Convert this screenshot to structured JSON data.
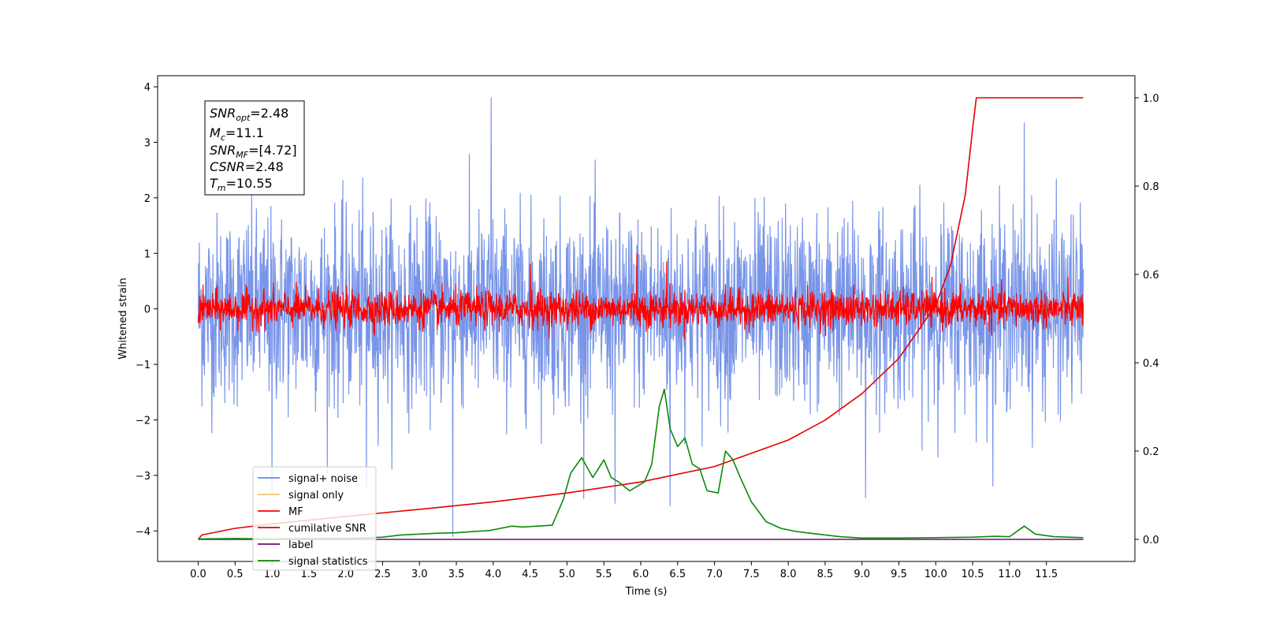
{
  "chart_data": {
    "type": "line",
    "title": "",
    "xlabel": "Time (s)",
    "ylabel": "Whitened strain",
    "xlim": [
      -0.55,
      12.7
    ],
    "ylim": [
      -4.55,
      4.2
    ],
    "ylim_right": [
      -0.05,
      1.05
    ],
    "xticks": [
      0.0,
      0.5,
      1.0,
      1.5,
      2.0,
      2.5,
      3.0,
      3.5,
      4.0,
      4.5,
      5.0,
      5.5,
      6.0,
      6.5,
      7.0,
      7.5,
      8.0,
      8.5,
      9.0,
      9.5,
      10.0,
      10.5,
      11.0,
      11.5
    ],
    "xtick_labels": [
      "0.0",
      "0.5",
      "1.0",
      "1.5",
      "2.0",
      "2.5",
      "3.0",
      "3.5",
      "4.0",
      "4.5",
      "5.0",
      "5.5",
      "6.0",
      "6.5",
      "7.0",
      "7.5",
      "8.0",
      "8.5",
      "9.0",
      "9.5",
      "10.0",
      "10.5",
      "11.0",
      "11.5"
    ],
    "yticks_left": [
      -4,
      -3,
      -2,
      -1,
      0,
      1,
      2,
      3,
      4
    ],
    "ytick_labels_left": [
      "−4",
      "−3",
      "−2",
      "−1",
      "0",
      "1",
      "2",
      "3",
      "4"
    ],
    "yticks_right": [
      0.0,
      0.2,
      0.4,
      0.6,
      0.8,
      1.0
    ],
    "ytick_labels_right": [
      "0.0",
      "0.2",
      "0.4",
      "0.6",
      "0.8",
      "1.0"
    ],
    "grid": false,
    "legend_position": "lower-left",
    "series": [
      {
        "name": "signal+ noise",
        "color": "#6a89e6",
        "axis": "left",
        "x_range": [
          0.0,
          12.0
        ],
        "noise_std": 0.85,
        "spikes": [
          [
            3.45,
            -4.1
          ],
          [
            3.97,
            3.8
          ],
          [
            2.28,
            -3.2
          ],
          [
            5.65,
            -3.5
          ],
          [
            6.4,
            -3.55
          ],
          [
            11.2,
            3.35
          ],
          [
            9.05,
            -3.4
          ],
          [
            1.0,
            -3.3
          ]
        ]
      },
      {
        "name": "signal only",
        "color": "#f5c76a",
        "axis": "left",
        "x_range": [
          0.0,
          12.0
        ],
        "values": [
          0.0
        ]
      },
      {
        "name": "MF",
        "color": "#ff0000",
        "axis": "left",
        "x_range": [
          0.0,
          12.0
        ],
        "noise_std": 0.16
      },
      {
        "name": "cumilative SNR",
        "color": "#e60000",
        "axis": "right",
        "x": [
          0.0,
          0.05,
          0.5,
          1.0,
          2.0,
          3.0,
          4.0,
          5.0,
          6.0,
          7.0,
          8.0,
          8.5,
          9.0,
          9.5,
          10.0,
          10.2,
          10.4,
          10.5,
          10.55,
          12.0
        ],
        "y": [
          0.0,
          0.01,
          0.025,
          0.035,
          0.052,
          0.068,
          0.085,
          0.105,
          0.13,
          0.165,
          0.225,
          0.27,
          0.33,
          0.41,
          0.53,
          0.62,
          0.78,
          0.93,
          1.0,
          1.0
        ]
      },
      {
        "name": "label",
        "color": "#6b0f6b",
        "axis": "right",
        "x": [
          0.0,
          12.0
        ],
        "y": [
          0.0,
          0.0
        ]
      },
      {
        "name": "signal statistics",
        "color": "#0a8a0a",
        "axis": "right",
        "x": [
          0.0,
          0.5,
          1.0,
          1.5,
          2.0,
          2.5,
          2.75,
          3.0,
          3.25,
          3.5,
          3.75,
          3.95,
          4.1,
          4.25,
          4.4,
          4.6,
          4.8,
          4.95,
          5.05,
          5.2,
          5.35,
          5.5,
          5.6,
          5.7,
          5.85,
          5.95,
          6.05,
          6.15,
          6.25,
          6.32,
          6.4,
          6.5,
          6.6,
          6.7,
          6.8,
          6.9,
          7.05,
          7.15,
          7.25,
          7.35,
          7.5,
          7.7,
          7.9,
          8.1,
          8.4,
          8.7,
          9.0,
          9.5,
          10.0,
          10.5,
          10.8,
          11.0,
          11.2,
          11.35,
          11.6,
          12.0
        ],
        "y": [
          0.001,
          0.002,
          0.001,
          0.002,
          0.002,
          0.005,
          0.01,
          0.012,
          0.014,
          0.015,
          0.018,
          0.02,
          0.025,
          0.03,
          0.028,
          0.03,
          0.032,
          0.09,
          0.15,
          0.185,
          0.14,
          0.18,
          0.14,
          0.13,
          0.11,
          0.12,
          0.13,
          0.17,
          0.3,
          0.34,
          0.25,
          0.21,
          0.23,
          0.17,
          0.16,
          0.11,
          0.105,
          0.2,
          0.18,
          0.14,
          0.085,
          0.04,
          0.025,
          0.018,
          0.012,
          0.006,
          0.003,
          0.003,
          0.004,
          0.005,
          0.007,
          0.006,
          0.03,
          0.012,
          0.006,
          0.004
        ]
      }
    ]
  },
  "info_box": {
    "snr_opt": {
      "main": "SNR",
      "sub": "opt",
      "value": "=2.48"
    },
    "mc": {
      "main": "M",
      "sub": "c",
      "value": "=11.1"
    },
    "snr_mf": {
      "main": "SNR",
      "sub": "MF",
      "value": "=[4.72]"
    },
    "csnr": {
      "main": "CSNR",
      "sub": "",
      "value": "=2.48"
    },
    "tm": {
      "main": "T",
      "sub": "m",
      "value": "=10.55"
    }
  }
}
